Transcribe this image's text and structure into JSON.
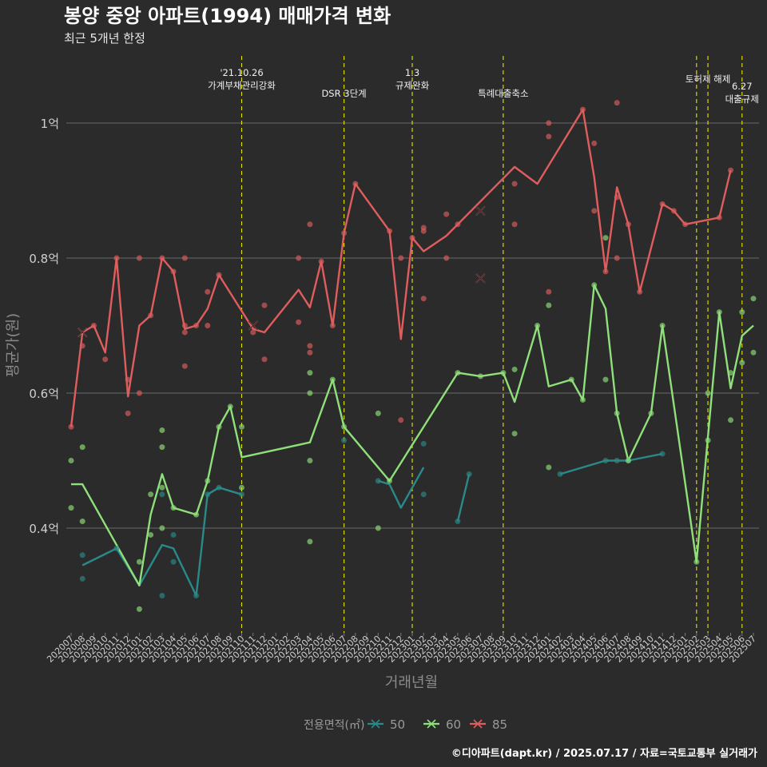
{
  "chart_data": {
    "type": "line",
    "title": "봉양 중앙 아파트(1994) 매매가격 변화",
    "subtitle": "최근 5개년 한정",
    "xlabel": "거래년월",
    "ylabel": "평균가(원)",
    "caption": "©디아파트(dapt.kr) / 2025.07.17 / 자료=국토교통부 실거래가",
    "legend_title": "전용면적(㎡)",
    "legend_placement": "bottom",
    "grid": true,
    "ylim": [
      0.24,
      1.07
    ],
    "y_ticks": [
      {
        "value": 0.4,
        "label": "0.4억"
      },
      {
        "value": 0.6,
        "label": "0.6억"
      },
      {
        "value": 0.8,
        "label": "0.8억"
      },
      {
        "value": 1.0,
        "label": "1억"
      }
    ],
    "categories": [
      "202007",
      "202008",
      "202009",
      "202010",
      "202011",
      "202012",
      "202101",
      "202102",
      "202103",
      "202104",
      "202105",
      "202106",
      "202107",
      "202108",
      "202109",
      "202110",
      "202111",
      "202112",
      "202201",
      "202202",
      "202203",
      "202204",
      "202205",
      "202206",
      "202207",
      "202208",
      "202209",
      "202210",
      "202211",
      "202212",
      "202301",
      "202302",
      "202303",
      "202304",
      "202305",
      "202306",
      "202307",
      "202308",
      "202309",
      "202310",
      "202311",
      "202312",
      "202401",
      "202402",
      "202403",
      "202404",
      "202405",
      "202406",
      "202407",
      "202408",
      "202409",
      "202410",
      "202411",
      "202412",
      "202501",
      "202502",
      "202503",
      "202504",
      "202505",
      "202506",
      "202507"
    ],
    "annotations": [
      {
        "at": "202110",
        "lines": [
          "'21.10.26",
          "가계부채관리강화"
        ],
        "row": 0
      },
      {
        "at": "202207",
        "lines": [
          "DSR 3단계"
        ],
        "row": 1
      },
      {
        "at": "202301",
        "lines": [
          "1.3",
          "규제완화"
        ],
        "row": 0
      },
      {
        "at": "202309",
        "lines": [
          "특례대출축소"
        ],
        "row": 1
      },
      {
        "at": "202502",
        "lines": [],
        "row": 0
      },
      {
        "at": "202503",
        "lines": [
          "토허제 해제"
        ],
        "row": 0
      },
      {
        "at": "202506",
        "lines": [
          "6.27",
          "대출규제"
        ],
        "row": 2
      }
    ],
    "series": [
      {
        "name": "50",
        "color": "#2a8a89",
        "line": [
          [
            "202008",
            0.345
          ],
          [
            "202011",
            0.37
          ],
          [
            "202101",
            0.315
          ],
          [
            "202103",
            0.375
          ],
          [
            "202104",
            0.37
          ],
          [
            "202106",
            0.3
          ],
          [
            "202107",
            0.45
          ],
          [
            "202108",
            0.46
          ],
          [
            "202110",
            0.45
          ],
          null,
          [
            "202210",
            0.47
          ],
          [
            "202211",
            0.465
          ],
          [
            "202212",
            0.43
          ],
          [
            "202302",
            0.49
          ],
          null,
          [
            "202305",
            0.41
          ],
          [
            "202306",
            0.48
          ],
          null,
          [
            "202402",
            0.48
          ],
          [
            "202406",
            0.5
          ],
          [
            "202407",
            0.5
          ],
          [
            "202408",
            0.5
          ],
          [
            "202411",
            0.51
          ]
        ],
        "points": [
          [
            "202008",
            0.36
          ],
          [
            "202008",
            0.325
          ],
          [
            "202011",
            0.37
          ],
          [
            "202103",
            0.45
          ],
          [
            "202103",
            0.3
          ],
          [
            "202104",
            0.39
          ],
          [
            "202104",
            0.35
          ],
          [
            "202106",
            0.3
          ],
          [
            "202107",
            0.45
          ],
          [
            "202108",
            0.46
          ],
          [
            "202110",
            0.45
          ],
          [
            "202207",
            0.53
          ],
          [
            "202210",
            0.47
          ],
          [
            "202302",
            0.525
          ],
          [
            "202302",
            0.45
          ],
          [
            "202305",
            0.41
          ],
          [
            "202306",
            0.48
          ],
          [
            "202402",
            0.48
          ],
          [
            "202406",
            0.5
          ],
          [
            "202407",
            0.5
          ],
          [
            "202408",
            0.5
          ],
          [
            "202411",
            0.51
          ]
        ],
        "crosses": []
      },
      {
        "name": "60",
        "color": "#8fe07a",
        "line": [
          [
            "202007",
            0.465
          ],
          [
            "202008",
            0.465
          ],
          [
            "202101",
            0.315
          ],
          [
            "202102",
            0.42
          ],
          [
            "202103",
            0.48
          ],
          [
            "202104",
            0.43
          ],
          [
            "202106",
            0.42
          ],
          [
            "202107",
            0.47
          ],
          [
            "202108",
            0.55
          ],
          [
            "202109",
            0.58
          ],
          [
            "202110",
            0.505
          ],
          [
            "202204",
            0.527
          ],
          [
            "202206",
            0.62
          ],
          [
            "202207",
            0.55
          ],
          [
            "202211",
            0.47
          ],
          [
            "202305",
            0.63
          ],
          [
            "202307",
            0.625
          ],
          [
            "202309",
            0.63
          ],
          [
            "202310",
            0.587
          ],
          [
            "202312",
            0.7
          ],
          [
            "202401",
            0.61
          ],
          [
            "202403",
            0.62
          ],
          [
            "202404",
            0.59
          ],
          [
            "202405",
            0.76
          ],
          [
            "202406",
            0.725
          ],
          [
            "202407",
            0.57
          ],
          [
            "202408",
            0.5
          ],
          [
            "202410",
            0.57
          ],
          [
            "202411",
            0.7
          ],
          [
            "202502",
            0.35
          ],
          [
            "202504",
            0.72
          ],
          [
            "202505",
            0.607
          ],
          [
            "202506",
            0.685
          ],
          [
            "202507",
            0.7
          ]
        ],
        "points": [
          [
            "202007",
            0.5
          ],
          [
            "202007",
            0.43
          ],
          [
            "202008",
            0.52
          ],
          [
            "202008",
            0.41
          ],
          [
            "202101",
            0.35
          ],
          [
            "202101",
            0.28
          ],
          [
            "202102",
            0.45
          ],
          [
            "202102",
            0.39
          ],
          [
            "202103",
            0.545
          ],
          [
            "202103",
            0.52
          ],
          [
            "202103",
            0.46
          ],
          [
            "202103",
            0.4
          ],
          [
            "202104",
            0.43
          ],
          [
            "202106",
            0.42
          ],
          [
            "202107",
            0.47
          ],
          [
            "202108",
            0.55
          ],
          [
            "202109",
            0.58
          ],
          [
            "202110",
            0.55
          ],
          [
            "202110",
            0.46
          ],
          [
            "202204",
            0.63
          ],
          [
            "202204",
            0.6
          ],
          [
            "202204",
            0.5
          ],
          [
            "202204",
            0.38
          ],
          [
            "202206",
            0.62
          ],
          [
            "202207",
            0.55
          ],
          [
            "202210",
            0.57
          ],
          [
            "202210",
            0.4
          ],
          [
            "202211",
            0.47
          ],
          [
            "202305",
            0.63
          ],
          [
            "202307",
            0.625
          ],
          [
            "202309",
            0.63
          ],
          [
            "202310",
            0.635
          ],
          [
            "202310",
            0.54
          ],
          [
            "202312",
            0.7
          ],
          [
            "202401",
            0.73
          ],
          [
            "202401",
            0.49
          ],
          [
            "202403",
            0.62
          ],
          [
            "202404",
            0.59
          ],
          [
            "202405",
            0.76
          ],
          [
            "202406",
            0.83
          ],
          [
            "202406",
            0.62
          ],
          [
            "202407",
            0.57
          ],
          [
            "202408",
            0.5
          ],
          [
            "202410",
            0.57
          ],
          [
            "202411",
            0.7
          ],
          [
            "202502",
            0.35
          ],
          [
            "202503",
            0.6
          ],
          [
            "202503",
            0.53
          ],
          [
            "202504",
            0.72
          ],
          [
            "202505",
            0.63
          ],
          [
            "202505",
            0.56
          ],
          [
            "202506",
            0.72
          ],
          [
            "202506",
            0.645
          ],
          [
            "202507",
            0.74
          ],
          [
            "202507",
            0.66
          ]
        ],
        "crosses": []
      },
      {
        "name": "85",
        "color": "#e05d5d",
        "line": [
          [
            "202007",
            0.55
          ],
          [
            "202008",
            0.69
          ],
          [
            "202009",
            0.7
          ],
          [
            "202010",
            0.66
          ],
          [
            "202011",
            0.8
          ],
          [
            "202012",
            0.595
          ],
          [
            "202101",
            0.7
          ],
          [
            "202102",
            0.715
          ],
          [
            "202103",
            0.8
          ],
          [
            "202104",
            0.78
          ],
          [
            "202105",
            0.695
          ],
          [
            "202106",
            0.7
          ],
          [
            "202107",
            0.725
          ],
          [
            "202108",
            0.775
          ],
          [
            "202111",
            0.695
          ],
          [
            "202112",
            0.69
          ],
          [
            "202203",
            0.753
          ],
          [
            "202204",
            0.727
          ],
          [
            "202205",
            0.795
          ],
          [
            "202206",
            0.7
          ],
          [
            "202207",
            0.837
          ],
          [
            "202208",
            0.91
          ],
          [
            "202211",
            0.84
          ],
          [
            "202212",
            0.68
          ],
          [
            "202301",
            0.83
          ],
          [
            "202302",
            0.81
          ],
          [
            "202304",
            0.833
          ],
          [
            "202305",
            0.85
          ],
          [
            "202310",
            0.935
          ],
          [
            "202312",
            0.91
          ],
          [
            "202404",
            1.02
          ],
          [
            "202405",
            0.92
          ],
          [
            "202406",
            0.78
          ],
          [
            "202407",
            0.905
          ],
          [
            "202408",
            0.85
          ],
          [
            "202409",
            0.75
          ],
          [
            "202411",
            0.88
          ],
          [
            "202412",
            0.87
          ],
          [
            "202501",
            0.85
          ],
          [
            "202504",
            0.86
          ],
          [
            "202505",
            0.93
          ]
        ],
        "points": [
          [
            "202007",
            0.55
          ],
          [
            "202008",
            0.67
          ],
          [
            "202009",
            0.7
          ],
          [
            "202010",
            0.65
          ],
          [
            "202011",
            0.8
          ],
          [
            "202012",
            0.62
          ],
          [
            "202012",
            0.57
          ],
          [
            "202101",
            0.8
          ],
          [
            "202101",
            0.6
          ],
          [
            "202102",
            0.715
          ],
          [
            "202103",
            0.8
          ],
          [
            "202104",
            0.78
          ],
          [
            "202105",
            0.8
          ],
          [
            "202105",
            0.7
          ],
          [
            "202105",
            0.69
          ],
          [
            "202105",
            0.64
          ],
          [
            "202106",
            0.7
          ],
          [
            "202107",
            0.75
          ],
          [
            "202107",
            0.7
          ],
          [
            "202108",
            0.775
          ],
          [
            "202111",
            0.69
          ],
          [
            "202112",
            0.73
          ],
          [
            "202112",
            0.65
          ],
          [
            "202203",
            0.8
          ],
          [
            "202203",
            0.705
          ],
          [
            "202204",
            0.85
          ],
          [
            "202204",
            0.67
          ],
          [
            "202204",
            0.66
          ],
          [
            "202205",
            0.795
          ],
          [
            "202206",
            0.7
          ],
          [
            "202207",
            0.837
          ],
          [
            "202208",
            0.91
          ],
          [
            "202211",
            0.84
          ],
          [
            "202212",
            0.8
          ],
          [
            "202212",
            0.56
          ],
          [
            "202301",
            0.83
          ],
          [
            "202302",
            0.845
          ],
          [
            "202302",
            0.84
          ],
          [
            "202302",
            0.74
          ],
          [
            "202304",
            0.865
          ],
          [
            "202304",
            0.8
          ],
          [
            "202305",
            0.85
          ],
          [
            "202310",
            0.91
          ],
          [
            "202310",
            0.85
          ],
          [
            "202401",
            1.0
          ],
          [
            "202401",
            0.98
          ],
          [
            "202401",
            0.75
          ],
          [
            "202404",
            1.02
          ],
          [
            "202405",
            0.97
          ],
          [
            "202405",
            0.87
          ],
          [
            "202406",
            0.78
          ],
          [
            "202407",
            1.03
          ],
          [
            "202407",
            0.89
          ],
          [
            "202407",
            0.8
          ],
          [
            "202408",
            0.85
          ],
          [
            "202409",
            0.75
          ],
          [
            "202411",
            0.88
          ],
          [
            "202412",
            0.87
          ],
          [
            "202501",
            0.85
          ],
          [
            "202504",
            0.86
          ],
          [
            "202505",
            0.93
          ]
        ],
        "crosses": [
          [
            "202008",
            0.69
          ],
          [
            "202111",
            0.7
          ],
          [
            "202307",
            0.87
          ],
          [
            "202307",
            0.77
          ]
        ]
      }
    ]
  }
}
